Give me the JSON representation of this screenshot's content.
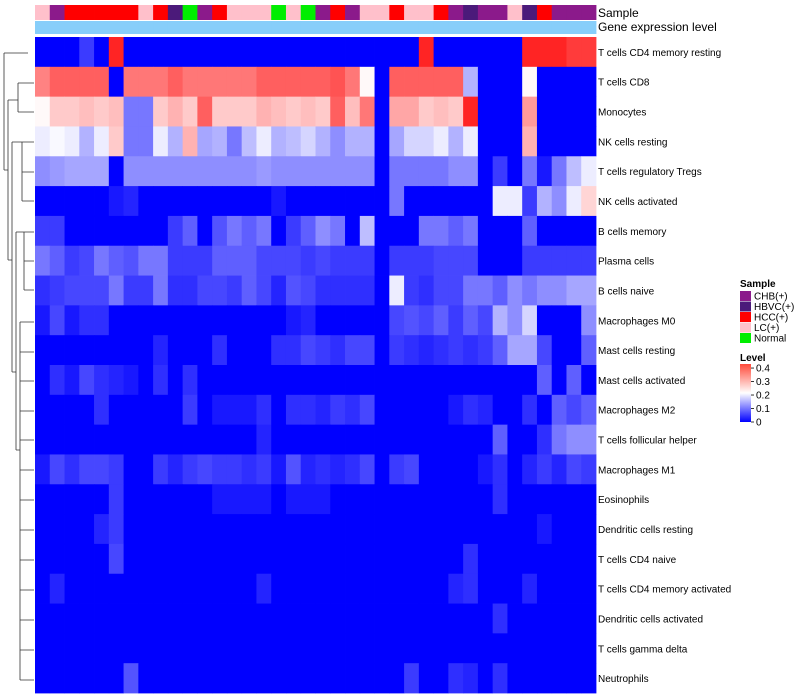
{
  "chart_data": {
    "type": "heatmap",
    "title": "",
    "annotation_tracks": [
      {
        "name": "Sample",
        "values": [
          "LC(+)",
          "CHB(+)",
          "HCC(+)",
          "HCC(+)",
          "HCC(+)",
          "HCC(+)",
          "HCC(+)",
          "LC(+)",
          "HCC(+)",
          "HBVC(+)",
          "Normal",
          "CHB(+)",
          "HCC(+)",
          "LC(+)",
          "LC(+)",
          "LC(+)",
          "Normal",
          "LC(+)",
          "Normal",
          "CHB(+)",
          "HCC(+)",
          "CHB(+)",
          "LC(+)",
          "LC(+)",
          "HCC(+)",
          "LC(+)",
          "LC(+)",
          "HCC(+)",
          "CHB(+)",
          "HBVC(+)",
          "CHB(+)",
          "CHB(+)",
          "LC(+)",
          "HBVC(+)",
          "HCC(+)",
          "CHB(+)",
          "CHB(+)",
          "CHB(+)"
        ]
      },
      {
        "name": "Gene expression level",
        "values": [
          "g",
          "g",
          "g",
          "g",
          "g",
          "g",
          "g",
          "g",
          "g",
          "g",
          "g",
          "g",
          "g",
          "g",
          "g",
          "g",
          "g",
          "g",
          "g",
          "g",
          "g",
          "g",
          "g",
          "g",
          "g",
          "g",
          "g",
          "g",
          "g",
          "g",
          "g",
          "g",
          "g",
          "g",
          "g",
          "g",
          "g",
          "g"
        ]
      }
    ],
    "sample_legend": {
      "title": "Sample",
      "entries": [
        {
          "label": "CHB(+)",
          "color": "#8B1A8B"
        },
        {
          "label": "HBVC(+)",
          "color": "#4B1A7A"
        },
        {
          "label": "HCC(+)",
          "color": "#FF0000"
        },
        {
          "label": "LC(+)",
          "color": "#FFC0CB"
        },
        {
          "label": "Normal",
          "color": "#00EE00"
        }
      ]
    },
    "level_legend": {
      "title": "Level",
      "ticks": [
        "0.4",
        "0.3",
        "0.2",
        "0.1",
        "0"
      ],
      "tick_values": [
        0.4,
        0.3,
        0.2,
        0.1,
        0
      ],
      "min": 0,
      "max": 0.43
    },
    "colors": {
      "low": "#0000FF",
      "mid": "#FFFFFF",
      "high": "#FF0000",
      "expr_track": "#87CEFA"
    },
    "rows": [
      {
        "label": "T cells CD4 memory resting",
        "values": [
          0,
          0,
          0,
          0.05,
          0,
          0.4,
          0,
          0,
          0,
          0,
          0,
          0,
          0,
          0,
          0,
          0,
          0,
          0,
          0,
          0,
          0,
          0,
          0,
          0,
          0,
          0,
          0.4,
          0,
          0,
          0,
          0,
          0,
          0,
          0.4,
          0.4,
          0.4,
          0.38,
          0.38
        ]
      },
      {
        "label": "T cells CD8",
        "values": [
          0.32,
          0.35,
          0.35,
          0.35,
          0.35,
          0,
          0.33,
          0.33,
          0.33,
          0.35,
          0.33,
          0.33,
          0.33,
          0.33,
          0.33,
          0.35,
          0.35,
          0.35,
          0.35,
          0.35,
          0.36,
          0.33,
          0.22,
          0,
          0.35,
          0.35,
          0.35,
          0.35,
          0.35,
          0.15,
          0,
          0,
          0,
          0.22,
          0,
          0,
          0,
          0
        ]
      },
      {
        "label": "Monocytes",
        "values": [
          0.22,
          0.26,
          0.26,
          0.27,
          0.26,
          0.27,
          0.1,
          0.1,
          0.26,
          0.28,
          0.26,
          0.35,
          0.26,
          0.26,
          0.26,
          0.28,
          0.27,
          0.26,
          0.27,
          0.26,
          0.35,
          0.27,
          0.33,
          0,
          0.29,
          0.29,
          0.26,
          0.27,
          0.26,
          0.4,
          0,
          0,
          0,
          0.3,
          0,
          0,
          0,
          0
        ]
      },
      {
        "label": "NK cells resting",
        "values": [
          0.2,
          0.21,
          0.2,
          0.15,
          0.2,
          0.26,
          0.1,
          0.1,
          0.2,
          0.15,
          0.28,
          0.14,
          0.15,
          0.1,
          0.16,
          0.2,
          0.15,
          0.16,
          0.18,
          0.15,
          0.12,
          0.15,
          0.15,
          0,
          0.14,
          0.18,
          0.18,
          0.2,
          0.15,
          0.2,
          0,
          0,
          0,
          0.28,
          0,
          0,
          0,
          0
        ]
      },
      {
        "label": "T cells regulatory  Tregs",
        "values": [
          0.12,
          0.13,
          0.14,
          0.14,
          0.14,
          0,
          0.12,
          0.12,
          0.12,
          0.12,
          0.12,
          0.12,
          0.12,
          0.12,
          0.12,
          0.13,
          0.12,
          0.12,
          0.12,
          0.12,
          0.12,
          0.12,
          0.12,
          0,
          0.1,
          0.1,
          0.1,
          0.1,
          0.12,
          0.12,
          0,
          0.05,
          0,
          0.1,
          0.02,
          0.1,
          0.16,
          0.2
        ]
      },
      {
        "label": "NK cells activated",
        "values": [
          0,
          0,
          0,
          0,
          0,
          0.02,
          0.03,
          0,
          0,
          0,
          0,
          0,
          0,
          0,
          0,
          0,
          0.02,
          0,
          0,
          0,
          0,
          0,
          0,
          0,
          0.1,
          0,
          0,
          0,
          0,
          0,
          0,
          0.2,
          0.2,
          0.05,
          0.15,
          0.12,
          0.2,
          0.25
        ]
      },
      {
        "label": "B cells memory",
        "values": [
          0.05,
          0.05,
          0,
          0,
          0,
          0,
          0,
          0,
          0,
          0.05,
          0.08,
          0,
          0.07,
          0.1,
          0.08,
          0.1,
          0,
          0.05,
          0.08,
          0.12,
          0.1,
          0,
          0.16,
          0,
          0,
          0,
          0.1,
          0.1,
          0.08,
          0.1,
          0,
          0,
          0,
          0.08,
          0,
          0,
          0,
          0
        ]
      },
      {
        "label": "Plasma cells",
        "values": [
          0.1,
          0.08,
          0.05,
          0.06,
          0.1,
          0.08,
          0.07,
          0.1,
          0.1,
          0.05,
          0.05,
          0.05,
          0.08,
          0.08,
          0.08,
          0.06,
          0.06,
          0.06,
          0.05,
          0.06,
          0.05,
          0.05,
          0.05,
          0,
          0.05,
          0.05,
          0.05,
          0.06,
          0.06,
          0.06,
          0,
          0,
          0,
          0.05,
          0.05,
          0.05,
          0.05,
          0.05
        ]
      },
      {
        "label": "B cells naive",
        "values": [
          0.04,
          0.05,
          0.06,
          0.06,
          0.06,
          0.1,
          0.05,
          0.05,
          0.1,
          0.04,
          0.04,
          0.06,
          0.06,
          0.05,
          0.08,
          0.06,
          0.03,
          0.07,
          0.06,
          0.04,
          0.04,
          0.04,
          0.04,
          0,
          0.2,
          0.05,
          0.04,
          0.06,
          0.06,
          0.1,
          0.1,
          0.08,
          0.12,
          0.1,
          0.12,
          0.12,
          0.14,
          0.14
        ]
      },
      {
        "label": "Macrophages M0",
        "values": [
          0.02,
          0.06,
          0.02,
          0.04,
          0.04,
          0,
          0,
          0,
          0,
          0,
          0,
          0,
          0,
          0,
          0,
          0,
          0,
          0.02,
          0.03,
          0,
          0,
          0,
          0,
          0,
          0.06,
          0.07,
          0.06,
          0.08,
          0.05,
          0.08,
          0.06,
          0.15,
          0.12,
          0.18,
          0,
          0,
          0,
          0.12
        ]
      },
      {
        "label": "Mast cells resting",
        "values": [
          0,
          0,
          0,
          0,
          0,
          0,
          0,
          0,
          0.03,
          0,
          0,
          0,
          0.04,
          0,
          0,
          0,
          0.04,
          0.04,
          0.06,
          0.05,
          0.04,
          0.06,
          0.06,
          0,
          0.05,
          0.04,
          0.03,
          0.04,
          0.05,
          0.04,
          0.05,
          0.08,
          0.14,
          0.14,
          0.06,
          0,
          0,
          0.08
        ]
      },
      {
        "label": "Mast cells activated",
        "values": [
          0,
          0.04,
          0.02,
          0.06,
          0.04,
          0.03,
          0.02,
          0,
          0.04,
          0,
          0.04,
          0,
          0,
          0,
          0,
          0,
          0,
          0,
          0,
          0,
          0,
          0,
          0,
          0,
          0,
          0,
          0,
          0,
          0,
          0,
          0,
          0,
          0,
          0,
          0.08,
          0,
          0.08,
          0
        ]
      },
      {
        "label": "Macrophages M2",
        "values": [
          0,
          0,
          0,
          0,
          0.04,
          0,
          0,
          0,
          0,
          0,
          0.05,
          0,
          0.02,
          0.02,
          0.02,
          0.04,
          0,
          0.04,
          0.04,
          0.03,
          0.05,
          0.04,
          0.06,
          0,
          0,
          0,
          0,
          0,
          0.02,
          0.04,
          0.03,
          0,
          0,
          0.04,
          0,
          0.08,
          0.06,
          0.08
        ]
      },
      {
        "label": "T cells follicular helper",
        "values": [
          0,
          0,
          0,
          0,
          0,
          0,
          0,
          0,
          0,
          0,
          0,
          0,
          0,
          0,
          0,
          0.03,
          0,
          0,
          0,
          0,
          0,
          0,
          0,
          0,
          0,
          0,
          0,
          0,
          0,
          0,
          0,
          0.08,
          0,
          0,
          0.04,
          0.1,
          0.12,
          0.12
        ]
      },
      {
        "label": "Macrophages M1",
        "values": [
          0.02,
          0.06,
          0.04,
          0.06,
          0.06,
          0.05,
          0,
          0,
          0.05,
          0.03,
          0.05,
          0.06,
          0.05,
          0.05,
          0.04,
          0.05,
          0.02,
          0.07,
          0.03,
          0.04,
          0.03,
          0.04,
          0.06,
          0,
          0.05,
          0.06,
          0,
          0,
          0,
          0,
          0.02,
          0.04,
          0,
          0.03,
          0.05,
          0.03,
          0.06,
          0.05
        ]
      },
      {
        "label": "Eosinophils",
        "values": [
          0,
          0,
          0,
          0,
          0,
          0.05,
          0,
          0,
          0,
          0,
          0,
          0,
          0.02,
          0.02,
          0.02,
          0.02,
          0,
          0.02,
          0.02,
          0.02,
          0,
          0,
          0,
          0,
          0,
          0,
          0,
          0,
          0,
          0,
          0,
          0.04,
          0,
          0,
          0,
          0,
          0,
          0
        ]
      },
      {
        "label": "Dendritic cells resting",
        "values": [
          0,
          0,
          0,
          0,
          0.03,
          0.05,
          0,
          0,
          0,
          0,
          0,
          0,
          0,
          0,
          0,
          0,
          0,
          0,
          0,
          0,
          0,
          0,
          0,
          0,
          0,
          0,
          0,
          0,
          0,
          0,
          0,
          0,
          0,
          0,
          0.02,
          0,
          0,
          0
        ]
      },
      {
        "label": "T cells CD4 naive",
        "values": [
          0,
          0,
          0,
          0,
          0,
          0.06,
          0,
          0,
          0,
          0,
          0,
          0,
          0,
          0,
          0,
          0,
          0,
          0,
          0,
          0,
          0,
          0,
          0,
          0,
          0,
          0,
          0,
          0,
          0,
          0.04,
          0,
          0,
          0,
          0,
          0,
          0,
          0,
          0
        ]
      },
      {
        "label": "T cells CD4 memory activated",
        "values": [
          0,
          0.03,
          0,
          0,
          0,
          0,
          0,
          0,
          0,
          0,
          0,
          0,
          0,
          0,
          0,
          0.03,
          0,
          0,
          0,
          0,
          0,
          0,
          0,
          0,
          0,
          0,
          0,
          0,
          0.03,
          0.04,
          0,
          0,
          0,
          0.03,
          0,
          0,
          0,
          0
        ]
      },
      {
        "label": "Dendritic cells activated",
        "values": [
          0,
          0,
          0,
          0,
          0,
          0,
          0,
          0,
          0,
          0,
          0,
          0,
          0,
          0,
          0,
          0,
          0,
          0,
          0,
          0,
          0,
          0,
          0,
          0,
          0,
          0,
          0,
          0,
          0,
          0,
          0,
          0.04,
          0,
          0,
          0,
          0,
          0,
          0
        ]
      },
      {
        "label": "T cells gamma delta",
        "values": [
          0,
          0,
          0,
          0,
          0,
          0,
          0,
          0,
          0,
          0,
          0,
          0,
          0,
          0,
          0,
          0,
          0,
          0,
          0,
          0,
          0,
          0,
          0,
          0,
          0,
          0,
          0,
          0,
          0,
          0,
          0,
          0,
          0,
          0,
          0,
          0,
          0,
          0
        ]
      },
      {
        "label": "Neutrophils",
        "values": [
          0,
          0,
          0,
          0,
          0,
          0,
          0.07,
          0,
          0,
          0,
          0,
          0,
          0,
          0,
          0,
          0,
          0,
          0,
          0,
          0,
          0,
          0,
          0,
          0,
          0,
          0.05,
          0,
          0,
          0.04,
          0.03,
          0,
          0.04,
          0,
          0,
          0,
          0,
          0,
          0
        ]
      }
    ]
  }
}
